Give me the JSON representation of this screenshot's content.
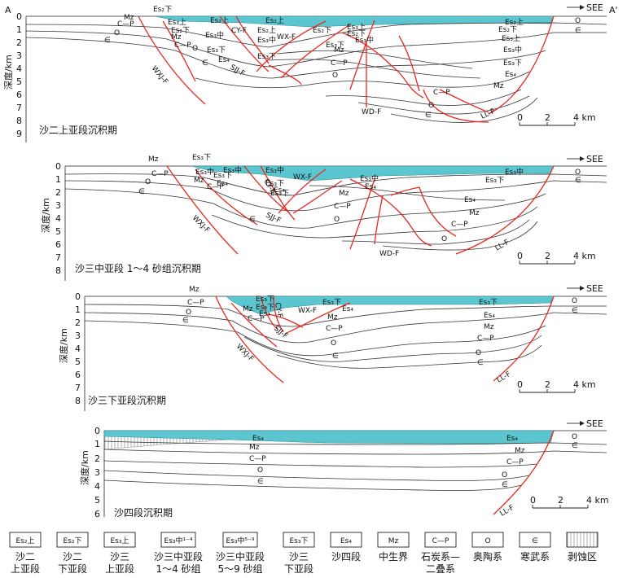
{
  "section": {
    "left_end": "A",
    "right_end": "A'"
  },
  "see_label": "SEE",
  "axis_title": "深度/km",
  "km_scale": {
    "labels": [
      "0",
      "2",
      "4 km"
    ]
  },
  "panels": [
    {
      "title": "沙二上亚段沉积期",
      "depth_ticks": [
        "0",
        "1",
        "2",
        "3",
        "4",
        "5",
        "6",
        "7",
        "8",
        "9"
      ],
      "labels": [
        "Mz",
        "C—P",
        "O",
        "∈",
        "Es₂下",
        "Es₃上",
        "Es₂上",
        "Es₂下",
        "Mz",
        "C—P",
        "Es₃中",
        "Es₃下",
        "O",
        "Es₄",
        "∈",
        "CY-F",
        "Es₃中",
        "Es₃下",
        "Es₂上",
        "WX-F",
        "Es₂上",
        "Es₂下",
        "Es₂下",
        "Es₃上",
        "Es₃中",
        "Es₃下",
        "Mz",
        "C—P",
        "O",
        "Es₂上",
        "Es₂下",
        "Es₃上",
        "Es₃中",
        "Es₃下",
        "Es₄",
        "Mz",
        "C—P",
        "O",
        "∈",
        "O",
        "∈",
        "WXJ-F",
        "SJJ-F",
        "WD-F",
        "LL-F"
      ]
    },
    {
      "title": "沙三中亚段 1～4 砂组沉积期",
      "depth_ticks": [
        "0",
        "1",
        "2",
        "3",
        "4",
        "5",
        "6",
        "7",
        "8"
      ],
      "labels": [
        "Mz",
        "C—P",
        "O",
        "∈",
        "Es₃下",
        "Es₃中",
        "Mz",
        "C—P",
        "Es₃下",
        "Es₄",
        "Es₃中",
        "Es₃中",
        "Es₃下",
        "CY-F",
        "Es₄",
        "WX-F",
        "Es₃下",
        "Es₃中",
        "Es₄",
        "Mz",
        "C—P",
        "O",
        "Es₃中",
        "Es₃下",
        "Es₄",
        "Mz",
        "C—P",
        "O",
        "∈",
        "O",
        "∈",
        "WXJ-F",
        "SJJ-F",
        "WD-F",
        "LL-F"
      ]
    },
    {
      "title": "沙三下亚段沉积期",
      "depth_ticks": [
        "0",
        "1",
        "2",
        "3",
        "4",
        "5",
        "6",
        "7",
        "8"
      ],
      "labels": [
        "Mz",
        "C—P",
        "O",
        "∈",
        "Es₃下",
        "Mz",
        "C—P",
        "Es₃下",
        "Es₄",
        "CY-F",
        "WX-F",
        "Es₃下",
        "Es₄",
        "Mz",
        "C—P",
        "O",
        "∈",
        "Es₃下",
        "Es₄",
        "Mz",
        "C—P",
        "O",
        "∈",
        "O",
        "∈",
        "WXJ-F",
        "SJJ-F",
        "LL-F"
      ]
    },
    {
      "title": "沙四段沉积期",
      "depth_ticks": [
        "0",
        "1",
        "2",
        "3",
        "4",
        "5",
        "6"
      ],
      "labels": [
        "Es₄",
        "Mz",
        "C—P",
        "O",
        "∈",
        "Es₄",
        "Mz",
        "C—P",
        "O",
        "∈",
        "O",
        "∈",
        "LL-F"
      ]
    }
  ],
  "legend": [
    {
      "symbol": "Es₂上",
      "caption": [
        "沙二",
        "上亚段"
      ]
    },
    {
      "symbol": "Es₂下",
      "caption": [
        "沙二",
        "下亚段"
      ]
    },
    {
      "symbol": "Es₃上",
      "caption": [
        "沙三",
        "上亚段"
      ]
    },
    {
      "symbol": "Es₃中¹⁻⁴",
      "caption": [
        "沙三中亚段",
        "1～4 砂组"
      ]
    },
    {
      "symbol": "Es₃中⁵⁻⁹",
      "caption": [
        "沙三中亚段",
        "5～9 砂组"
      ]
    },
    {
      "symbol": "Es₃下",
      "caption": [
        "沙三",
        "下亚段"
      ]
    },
    {
      "symbol": "Es₄",
      "caption": [
        "沙四段"
      ]
    },
    {
      "symbol": "Mz",
      "caption": [
        "中生界"
      ]
    },
    {
      "symbol": "C—P",
      "caption": [
        "石炭系—",
        "二叠系"
      ]
    },
    {
      "symbol": "O",
      "caption": [
        "奥陶系"
      ]
    },
    {
      "symbol": "∈",
      "caption": [
        "寒武系"
      ]
    },
    {
      "symbol": "",
      "caption": [
        "剥蚀区"
      ]
    }
  ],
  "colors": {
    "water": "#5cc6d0",
    "fault": "#e8261f"
  }
}
